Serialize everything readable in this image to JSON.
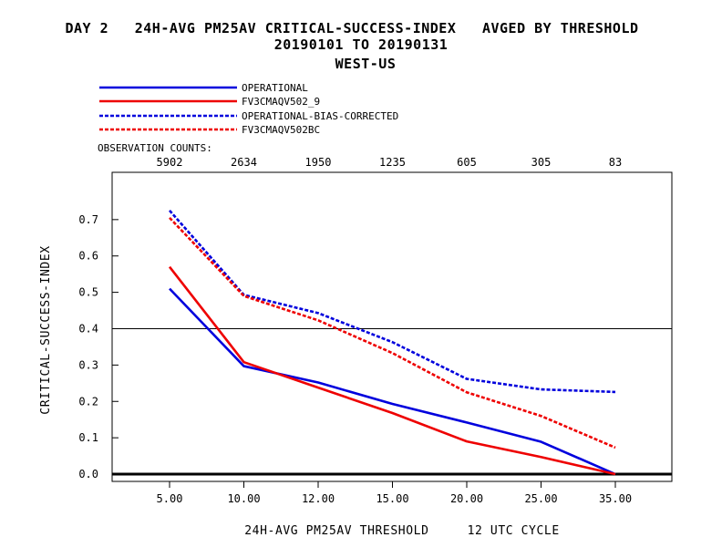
{
  "header": {
    "title_line1": "DAY 2   24H-AVG PM25AV CRITICAL-SUCCESS-INDEX   AVGED BY THRESHOLD",
    "title_line2": "20190101 TO 20190131",
    "title_line3": "WEST-US"
  },
  "legend": {
    "items": [
      {
        "label": "OPERATIONAL",
        "color": "#0000dd",
        "dash": "solid"
      },
      {
        "label": "FV3CMAQV502_9",
        "color": "#ee0000",
        "dash": "solid"
      },
      {
        "label": "OPERATIONAL-BIAS-CORRECTED",
        "color": "#0000dd",
        "dash": "dashed"
      },
      {
        "label": "FV3CMAQV502BC",
        "color": "#ee0000",
        "dash": "dashed"
      }
    ],
    "obs_counts_label": "OBSERVATION COUNTS:"
  },
  "chart_data": {
    "type": "line",
    "categories": [
      "5.00",
      "10.00",
      "12.00",
      "15.00",
      "20.00",
      "25.00",
      "35.00"
    ],
    "observation_counts": [
      "5902",
      "2634",
      "1950",
      "1235",
      "605",
      "305",
      "83"
    ],
    "series": [
      {
        "name": "OPERATIONAL",
        "values": [
          0.51,
          0.297,
          0.252,
          0.193,
          0.142,
          0.089,
          0.0
        ]
      },
      {
        "name": "FV3CMAQV502_9",
        "values": [
          0.57,
          0.308,
          0.238,
          0.168,
          0.09,
          0.047,
          0.0
        ]
      },
      {
        "name": "OPERATIONAL-BIAS-CORRECTED",
        "values": [
          0.725,
          0.493,
          0.443,
          0.363,
          0.262,
          0.233,
          0.226
        ]
      },
      {
        "name": "FV3CMAQV502BC",
        "values": [
          0.705,
          0.49,
          0.423,
          0.333,
          0.225,
          0.16,
          0.073
        ]
      }
    ],
    "yticks": [
      "0.0",
      "0.1",
      "0.2",
      "0.3",
      "0.4",
      "0.5",
      "0.6",
      "0.7"
    ],
    "ylim": [
      -0.02,
      0.83
    ],
    "reference_line": 0.4,
    "xlabel": "24H-AVG PM25AV THRESHOLD     12 UTC CYCLE",
    "ylabel": "CRITICAL-SUCCESS-INDEX",
    "grid": false,
    "legend_position": "top-left"
  }
}
